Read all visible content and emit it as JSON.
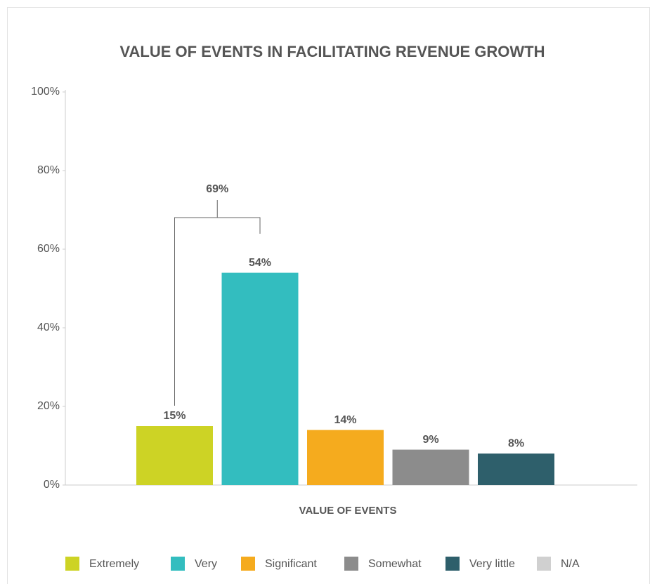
{
  "chart_data": {
    "type": "bar",
    "title": "VALUE OF EVENTS IN FACILITATING REVENUE GROWTH",
    "x_label": "VALUE OF EVENTS",
    "series": [
      {
        "name": "Extremely",
        "color": "#cdd325",
        "values": [
          15
        ],
        "value_labels": [
          "15%"
        ]
      },
      {
        "name": "Very",
        "color": "#33bdbf",
        "values": [
          54
        ],
        "value_labels": [
          "54%"
        ]
      },
      {
        "name": "Significant",
        "color": "#f5ab1e",
        "values": [
          14
        ],
        "value_labels": [
          "14%"
        ]
      },
      {
        "name": "Somewhat",
        "color": "#8c8c8c",
        "values": [
          9
        ],
        "value_labels": [
          "9%"
        ]
      },
      {
        "name": "Very little",
        "color": "#2e5f6b",
        "values": [
          8
        ],
        "value_labels": [
          "8%"
        ]
      },
      {
        "name": "N/A",
        "color": "#d0d0d0",
        "values": [
          null
        ]
      }
    ],
    "annotations": [
      {
        "text": "69%"
      }
    ],
    "ylim": [
      0,
      100
    ],
    "yticks": [
      {
        "value": 0,
        "label": "0%"
      },
      {
        "value": 20,
        "label": "20%"
      },
      {
        "value": 40,
        "label": "40%"
      },
      {
        "value": 60,
        "label": "60%"
      },
      {
        "value": 80,
        "label": "80%"
      },
      {
        "value": 100,
        "label": "100%"
      }
    ],
    "grid": false,
    "legend": "bottom"
  }
}
